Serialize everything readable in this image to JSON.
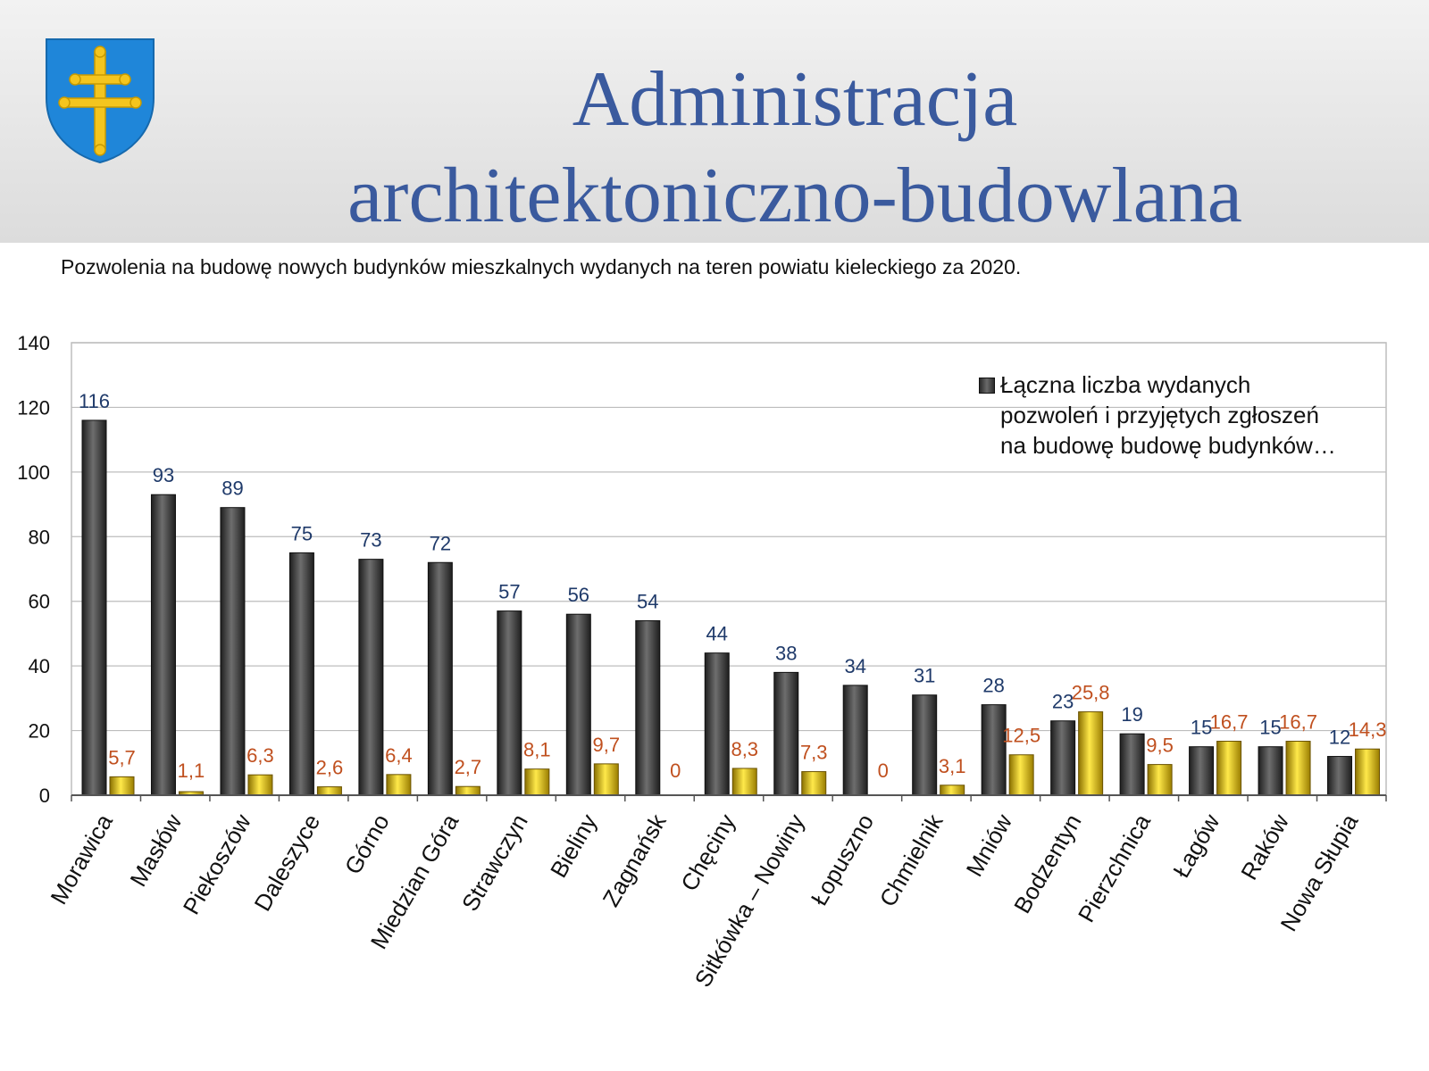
{
  "slide": {
    "title": "Administracja architektoniczno-budowlana",
    "title_line1": "Administracja",
    "title_line2": "architektoniczno-budowlana",
    "crest_icon": "coat-of-arms-shield-icon"
  },
  "colors": {
    "header_title": "#3a5a9e",
    "crest_blue": "#1f86d9",
    "crest_gold": "#f4c51e",
    "series_total": "#3a3a3a",
    "series_second": "#e6c200",
    "value_label_total": "#1f3a6a",
    "value_label_second": "#c0501f",
    "grid": "#bdbdbd"
  },
  "chart_data": {
    "type": "bar",
    "title": "Pozwolenia na budowę nowych budynków mieszkalnych wydanych na teren powiatu kieleckiego za 2020.",
    "xlabel": "",
    "ylabel": "",
    "ylim": [
      0,
      140
    ],
    "yticks": [
      0,
      20,
      40,
      60,
      80,
      100,
      120,
      140
    ],
    "grid": true,
    "legend_position": "top-right",
    "categories": [
      "Morawica",
      "Masłów",
      "Piekoszów",
      "Daleszyce",
      "Górno",
      "Miedzian Góra",
      "Strawczyn",
      "Bieliny",
      "Zagnańsk",
      "Chęciny",
      "Sitkówka – Nowiny",
      "Łopuszno",
      "Chmielnik",
      "Mniów",
      "Bodzentyn",
      "Pierzchnica",
      "Łagów",
      "Raków",
      "Nowa Słupia"
    ],
    "series": [
      {
        "name": "Łączna liczba wydanych pozwoleń i przyjętych zgłoszeń na budowę budowę budynków…",
        "values": [
          116,
          93,
          89,
          75,
          73,
          72,
          57,
          56,
          54,
          44,
          38,
          34,
          31,
          28,
          23,
          19,
          15,
          15,
          12
        ],
        "labels": [
          "116",
          "93",
          "89",
          "75",
          "73",
          "72",
          "57",
          "56",
          "54",
          "44",
          "38",
          "34",
          "31",
          "28",
          "23",
          "19",
          "15",
          "15",
          "12"
        ]
      },
      {
        "values": [
          5.7,
          1.1,
          6.3,
          2.6,
          6.4,
          2.7,
          8.1,
          9.7,
          0,
          8.3,
          7.3,
          0,
          3.1,
          12.5,
          25.8,
          9.5,
          16.7,
          16.7,
          14.3
        ],
        "labels": [
          "5,7",
          "1,1",
          "6,3",
          "2,6",
          "6,4",
          "2,7",
          "8,1",
          "9,7",
          "0",
          "8,3",
          "7,3",
          "0",
          "3,1",
          "12,5",
          "25,8",
          "9,5",
          "16,7",
          "16,7",
          "14,3"
        ]
      }
    ]
  }
}
